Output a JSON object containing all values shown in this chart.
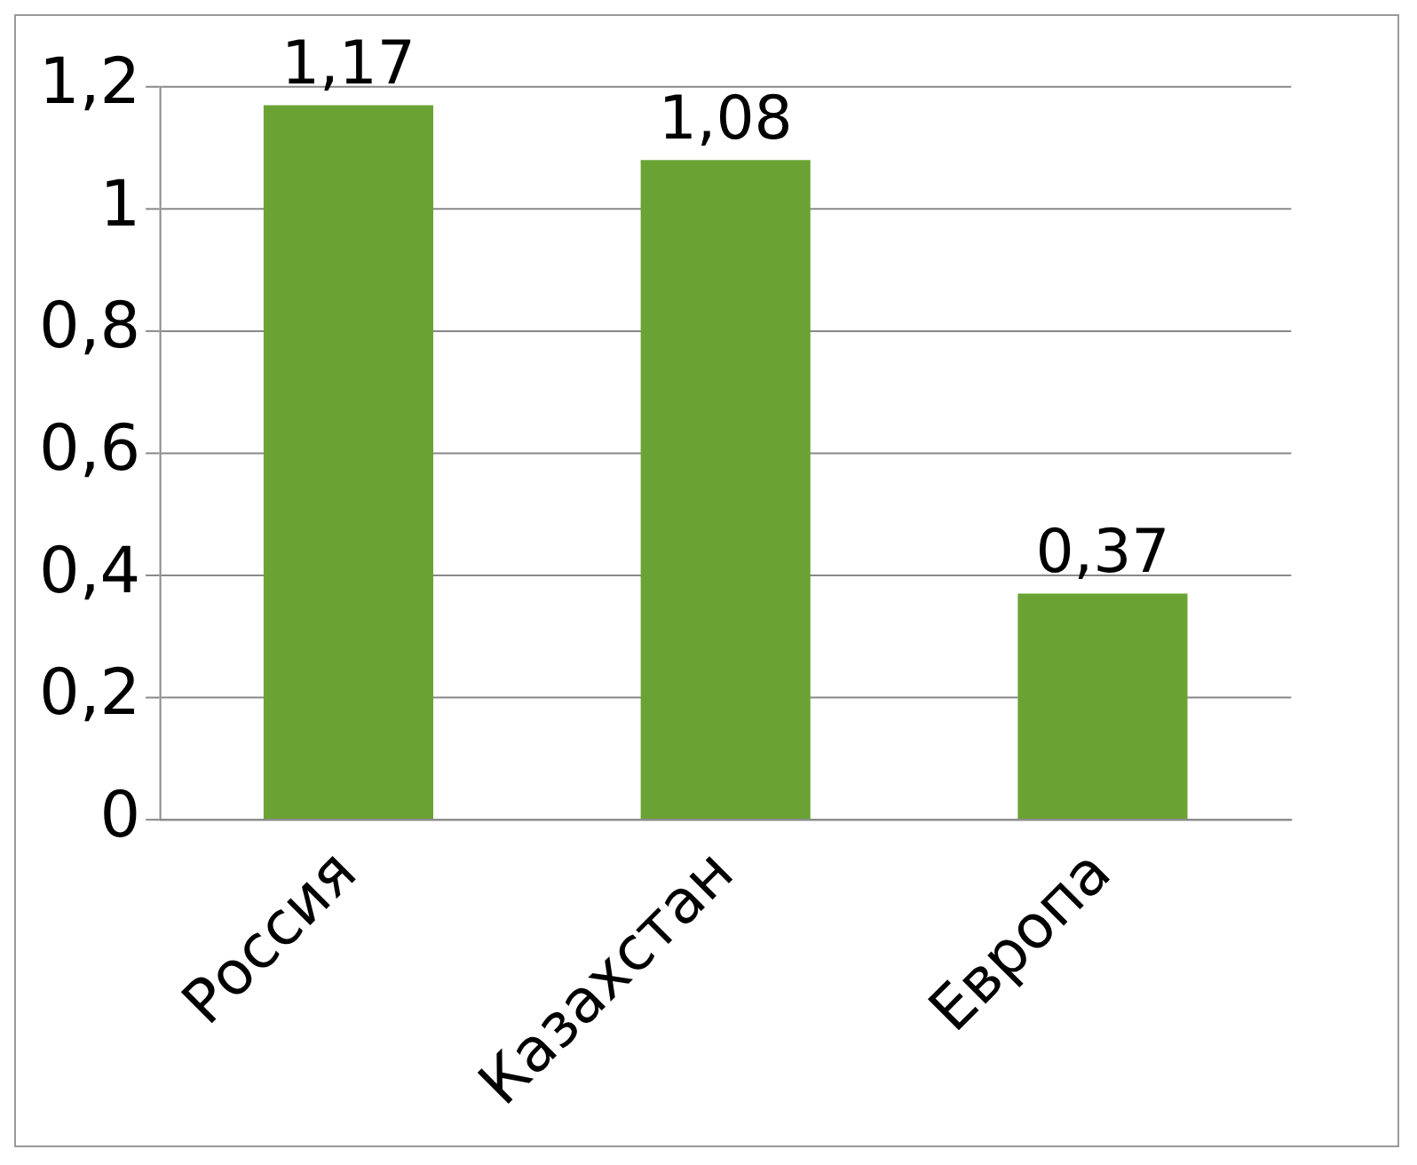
{
  "chart_data": {
    "type": "bar",
    "categories": [
      "Россия",
      "Казахстан",
      "Европа"
    ],
    "values": [
      1.17,
      1.08,
      0.37
    ],
    "value_labels": [
      "1,17",
      "1,08",
      "0,37"
    ],
    "color": "#6aa334",
    "ylim": [
      0,
      1.2
    ],
    "yticks": [
      {
        "value": 0,
        "label": "0"
      },
      {
        "value": 0.2,
        "label": "0,2"
      },
      {
        "value": 0.4,
        "label": "0,4"
      },
      {
        "value": 0.6,
        "label": "0,6"
      },
      {
        "value": 0.8,
        "label": "0,8"
      },
      {
        "value": 1,
        "label": "1"
      },
      {
        "value": 1.2,
        "label": "1,2"
      }
    ],
    "grid": "y"
  }
}
